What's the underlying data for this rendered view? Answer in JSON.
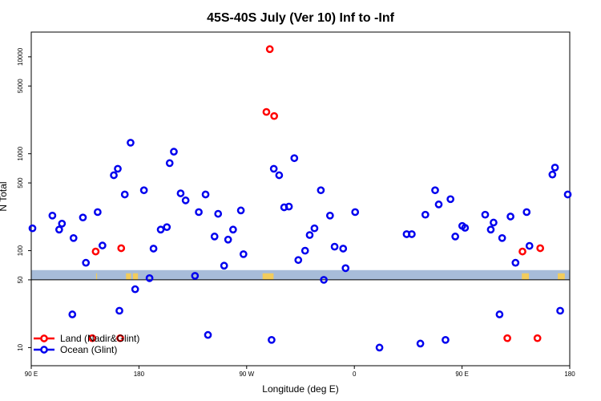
{
  "chart_data": {
    "type": "scatter",
    "title": "45S-40S July (Ver 10)   Inf to -Inf",
    "xlabel": "Longitude (deg E)",
    "ylabel": "N Total",
    "y_scale": "log",
    "xlim": [
      -90,
      180
    ],
    "ylim": [
      6.5,
      18000
    ],
    "x_ticks": [
      {
        "value": -90,
        "label": "90 E"
      },
      {
        "value": -36,
        "label": "180"
      },
      {
        "value": 18,
        "label": "90 W"
      },
      {
        "value": 72,
        "label": "0"
      },
      {
        "value": 126,
        "label": "90 E"
      },
      {
        "value": 180,
        "label": "180"
      }
    ],
    "y_ticks": [
      {
        "value": 10,
        "label": "10"
      },
      {
        "value": 50,
        "label": "50"
      },
      {
        "value": 100,
        "label": "100"
      },
      {
        "value": 500,
        "label": "500"
      },
      {
        "value": 1000,
        "label": "1000"
      },
      {
        "value": 5000,
        "label": "5000"
      },
      {
        "value": 10000,
        "label": "10000"
      }
    ],
    "reference_line_y": 50,
    "band": {
      "y_from": 50,
      "y_to": 63,
      "color": "#a7bcd9",
      "land_color": "#f2cc5c"
    },
    "band_land_segments": [
      [
        -57.5,
        -57.0
      ],
      [
        -42.5,
        -40.0
      ],
      [
        26.0,
        31.5
      ],
      [
        -39.0,
        -36.5
      ],
      [
        156.0,
        159.5
      ],
      [
        174.0,
        177.5
      ]
    ],
    "series": [
      {
        "name": "Land (Nadir&Glint)",
        "color": "#ff0000",
        "points": [
          [
            -57.7,
            98
          ],
          [
            -44.9,
            106
          ],
          [
            -59.4,
            12.5
          ],
          [
            -45.4,
            12.5
          ],
          [
            27.9,
            2700
          ],
          [
            29.6,
            12000
          ],
          [
            31.8,
            2450
          ],
          [
            148.7,
            12.5
          ],
          [
            156.3,
            98
          ],
          [
            163.8,
            12.5
          ],
          [
            165.2,
            106
          ]
        ]
      },
      {
        "name": "Ocean (Glint)",
        "color": "#0000ee",
        "points": [
          [
            -89.4,
            170
          ],
          [
            -79.4,
            230
          ],
          [
            -76.0,
            165
          ],
          [
            -74.6,
            190
          ],
          [
            -69.4,
            22
          ],
          [
            -68.8,
            135
          ],
          [
            -64.1,
            220
          ],
          [
            -62.6,
            75
          ],
          [
            -56.7,
            250
          ],
          [
            -54.3,
            113
          ],
          [
            -48.6,
            600
          ],
          [
            -46.6,
            700
          ],
          [
            -45.8,
            24
          ],
          [
            -43.1,
            380
          ],
          [
            -40.2,
            1300
          ],
          [
            -37.9,
            40
          ],
          [
            -33.5,
            420
          ],
          [
            -30.7,
            52
          ],
          [
            -28.7,
            105
          ],
          [
            -25.1,
            165
          ],
          [
            -22.0,
            175
          ],
          [
            -20.6,
            800
          ],
          [
            -18.5,
            1050
          ],
          [
            -15.1,
            390
          ],
          [
            -12.6,
            330
          ],
          [
            -7.9,
            55
          ],
          [
            -6.0,
            250
          ],
          [
            -2.6,
            380
          ],
          [
            -1.4,
            13.5
          ],
          [
            1.9,
            140
          ],
          [
            3.7,
            240
          ],
          [
            6.7,
            70
          ],
          [
            8.7,
            130
          ],
          [
            11.2,
            165
          ],
          [
            15.1,
            260
          ],
          [
            16.4,
            92
          ],
          [
            30.5,
            12
          ],
          [
            31.6,
            700
          ],
          [
            34.3,
            600
          ],
          [
            36.8,
            280
          ],
          [
            39.2,
            285
          ],
          [
            41.9,
            900
          ],
          [
            43.9,
            80
          ],
          [
            47.3,
            100
          ],
          [
            49.6,
            145
          ],
          [
            52.0,
            170
          ],
          [
            55.2,
            420
          ],
          [
            56.7,
            50
          ],
          [
            59.8,
            230
          ],
          [
            62.1,
            110
          ],
          [
            66.4,
            105
          ],
          [
            67.6,
            66
          ],
          [
            72.4,
            250
          ],
          [
            84.6,
            10
          ],
          [
            98.2,
            148
          ],
          [
            100.8,
            148
          ],
          [
            105.1,
            11
          ],
          [
            107.6,
            235
          ],
          [
            112.5,
            420
          ],
          [
            114.3,
            300
          ],
          [
            117.7,
            12
          ],
          [
            120.2,
            340
          ],
          [
            122.6,
            140
          ],
          [
            126.1,
            180
          ],
          [
            127.5,
            172
          ],
          [
            137.6,
            235
          ],
          [
            140.4,
            165
          ],
          [
            141.8,
            195
          ],
          [
            144.8,
            22
          ],
          [
            146.1,
            135
          ],
          [
            150.3,
            225
          ],
          [
            152.8,
            75
          ],
          [
            158.4,
            250
          ],
          [
            159.8,
            112
          ],
          [
            171.3,
            610
          ],
          [
            172.6,
            720
          ],
          [
            175.2,
            24
          ],
          [
            179.0,
            380
          ]
        ]
      }
    ],
    "legend": {
      "position": "bottom-left"
    }
  }
}
